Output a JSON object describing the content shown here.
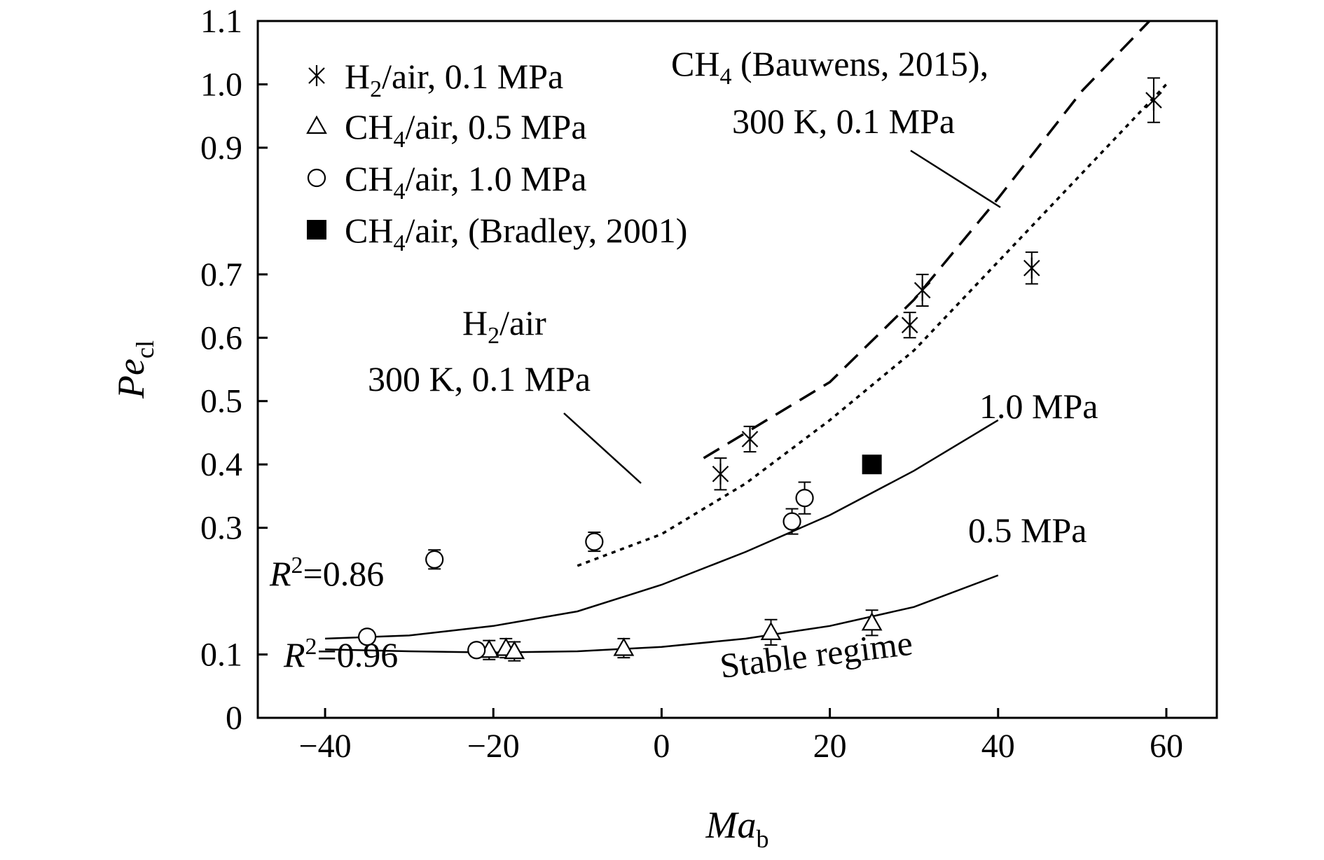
{
  "chart_data": {
    "type": "scatter",
    "title": "",
    "xlabel": {
      "main": "Ma",
      "sub": "b"
    },
    "ylabel": {
      "main": "Pe",
      "sub": "cl"
    },
    "xlim": [
      -48,
      66
    ],
    "ylim": [
      0,
      1.1
    ],
    "xticks": [
      -40,
      -20,
      0,
      20,
      40,
      60
    ],
    "yticks": [
      0,
      0.1,
      0.3,
      0.4,
      0.5,
      0.6,
      0.7,
      0.9,
      1.0,
      1.1
    ],
    "xtick_labels": [
      "−40",
      "−20",
      "0",
      "20",
      "40",
      "60"
    ],
    "ytick_labels": [
      "0",
      "0.1",
      "0.3",
      "0.4",
      "0.5",
      "0.6",
      "0.7",
      "0.9",
      "1.0",
      "1.1"
    ],
    "grid": false,
    "legend_position": "top-left",
    "series": [
      {
        "name": {
          "pre": "H",
          "sub": "2",
          "post": "/air, 0.1 MPa"
        },
        "marker": "asterisk",
        "points": [
          {
            "x": 7,
            "y": 0.385,
            "err": 0.025
          },
          {
            "x": 10.5,
            "y": 0.44,
            "err": 0.02
          },
          {
            "x": 29.5,
            "y": 0.62,
            "err": 0.02
          },
          {
            "x": 31,
            "y": 0.675,
            "err": 0.025
          },
          {
            "x": 44,
            "y": 0.71,
            "err": 0.025
          },
          {
            "x": 58.5,
            "y": 0.975,
            "err": 0.035
          }
        ]
      },
      {
        "name": {
          "pre": "CH",
          "sub": "4",
          "post": "/air, 0.5 MPa"
        },
        "marker": "triangle",
        "points": [
          {
            "x": -20.5,
            "y": 0.107,
            "err": 0.015
          },
          {
            "x": -18.5,
            "y": 0.11,
            "err": 0.015
          },
          {
            "x": -17.5,
            "y": 0.105,
            "err": 0.015
          },
          {
            "x": -4.5,
            "y": 0.11,
            "err": 0.015
          },
          {
            "x": 13,
            "y": 0.135,
            "err": 0.02
          },
          {
            "x": 25,
            "y": 0.15,
            "err": 0.02
          }
        ]
      },
      {
        "name": {
          "pre": "CH",
          "sub": "4",
          "post": "/air, 1.0 MPa"
        },
        "marker": "circle",
        "points": [
          {
            "x": -35,
            "y": 0.128,
            "err": 0.01
          },
          {
            "x": -27,
            "y": 0.25,
            "err": 0.015
          },
          {
            "x": -22,
            "y": 0.107,
            "err": 0.01
          },
          {
            "x": -8,
            "y": 0.278,
            "err": 0.015
          },
          {
            "x": 15.5,
            "y": 0.31,
            "err": 0.02
          },
          {
            "x": 17,
            "y": 0.347,
            "err": 0.025
          }
        ]
      },
      {
        "name": {
          "pre": "CH",
          "sub": "4",
          "post": "/air, (Bradley, 2001)"
        },
        "marker": "square",
        "points": [
          {
            "x": 25,
            "y": 0.4,
            "err": 0
          }
        ]
      }
    ],
    "fit_lines": [
      {
        "style": "solid",
        "x": [
          -40,
          -30,
          -20,
          -10,
          0,
          10,
          20,
          30,
          40
        ],
        "y": [
          0.108,
          0.105,
          0.103,
          0.105,
          0.112,
          0.125,
          0.145,
          0.175,
          0.225
        ]
      },
      {
        "style": "solid",
        "x": [
          -40,
          -30,
          -20,
          -10,
          0,
          10,
          20,
          30,
          40
        ],
        "y": [
          0.125,
          0.13,
          0.145,
          0.168,
          0.21,
          0.262,
          0.32,
          0.39,
          0.47
        ]
      },
      {
        "style": "dotted",
        "x": [
          -10,
          0,
          10,
          20,
          30,
          40,
          50,
          60
        ],
        "y": [
          0.24,
          0.29,
          0.37,
          0.47,
          0.58,
          0.72,
          0.86,
          1.0
        ]
      },
      {
        "style": "dashed",
        "x": [
          5,
          10,
          20,
          30,
          40,
          50,
          58
        ],
        "y": [
          0.41,
          0.45,
          0.53,
          0.66,
          0.82,
          0.99,
          1.1
        ]
      }
    ],
    "annotations": [
      {
        "id": "bauwens",
        "line1": {
          "pre": "CH",
          "sub": "4",
          "post": " (Bauwens, 2015),"
        },
        "line2": "300 K, 0.1 MPa"
      },
      {
        "id": "h2air",
        "line1": {
          "pre": "H",
          "sub": "2",
          "post": "/air"
        },
        "line2": "300 K, 0.1 MPa"
      },
      {
        "id": "label-10",
        "text": "1.0 MPa"
      },
      {
        "id": "label-05",
        "text": "0.5 MPa"
      },
      {
        "id": "r2-086",
        "italic": "R",
        "sup": "2",
        "rest": "=0.86"
      },
      {
        "id": "r2-096",
        "italic": "R",
        "sup": "2",
        "rest": "=0.96"
      },
      {
        "id": "stable",
        "text": "Stable regime"
      }
    ]
  }
}
